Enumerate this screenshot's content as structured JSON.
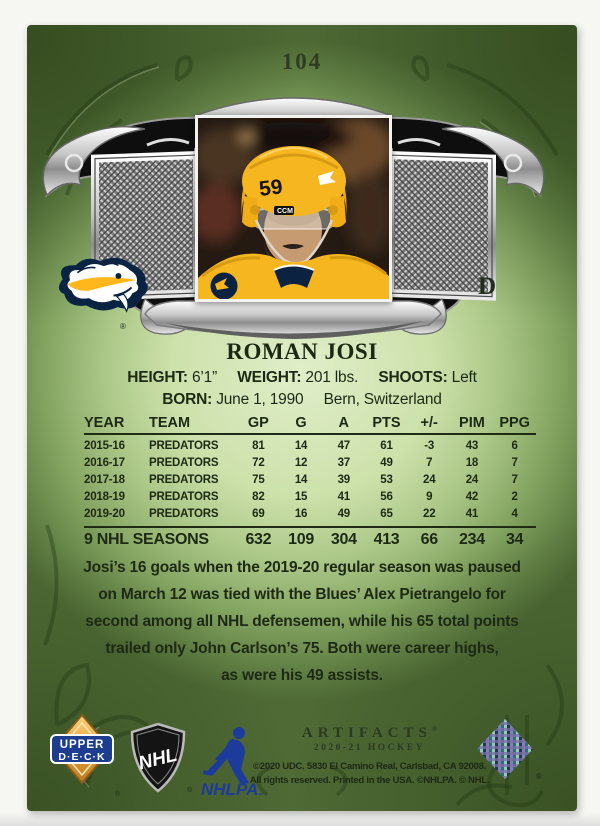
{
  "card": {
    "number": "104",
    "position": "D",
    "player_name": "ROMAN JOSI",
    "helmet_number": "59",
    "helmet_brand": "CCM",
    "team_logo": "nashville-predators",
    "registered_mark": "®"
  },
  "bio": {
    "height_label": "HEIGHT:",
    "height_value": "6’1”",
    "weight_label": "WEIGHT:",
    "weight_value": "201 lbs.",
    "shoots_label": "SHOOTS:",
    "shoots_value": "Left",
    "born_label": "BORN:",
    "born_value": "June 1, 1990",
    "birthplace": "Bern, Switzerland"
  },
  "stats": {
    "headers": [
      "YEAR",
      "TEAM",
      "GP",
      "G",
      "A",
      "PTS",
      "+/-",
      "PIM",
      "PPG"
    ],
    "rows": [
      [
        "2015-16",
        "PREDATORS",
        "81",
        "14",
        "47",
        "61",
        "-3",
        "43",
        "6"
      ],
      [
        "2016-17",
        "PREDATORS",
        "72",
        "12",
        "37",
        "49",
        "7",
        "18",
        "7"
      ],
      [
        "2017-18",
        "PREDATORS",
        "75",
        "14",
        "39",
        "53",
        "24",
        "24",
        "7"
      ],
      [
        "2018-19",
        "PREDATORS",
        "82",
        "15",
        "41",
        "56",
        "9",
        "42",
        "2"
      ],
      [
        "2019-20",
        "PREDATORS",
        "69",
        "16",
        "49",
        "65",
        "22",
        "41",
        "4"
      ]
    ],
    "totals": [
      "9 NHL SEASONS",
      "632",
      "109",
      "304",
      "413",
      "66",
      "234",
      "34"
    ]
  },
  "note": "Josi’s 16 goals when the 2019-20 regular season was paused\non March 12 was tied with the Blues’ Alex Pietrangelo for\nsecond among all NHL defensemen, while his 65 total points\ntrailed only John Carlson’s 75. Both were career highs,\nas were his 49 assists.",
  "footer": {
    "brand": "ARTIFACTS",
    "brand_mark": "®",
    "subtitle": "2020-21 HOCKEY",
    "copyright_line1": "©2020 UDC. 5830 El Camino Real, Carlsbad, CA 92008.",
    "copyright_line2": "All rights reserved. Printed in the USA. ©NHLPA. © NHL.",
    "upper_deck_line1": "UPPER",
    "upper_deck_line2": "D·E·C·K",
    "nhl_label": "NHL",
    "nhlpa_label": "NHLPA",
    "nhlpa_tm": "™"
  },
  "colors": {
    "predators_gold": "#ffb71b",
    "predators_navy": "#0a2342",
    "nhlpa_blue": "#1d3b9b",
    "card_green_dark": "#4f6a35",
    "card_green_light": "#e0eec9",
    "text_ink": "#1c2a15",
    "silver": "#c9c9c9"
  }
}
